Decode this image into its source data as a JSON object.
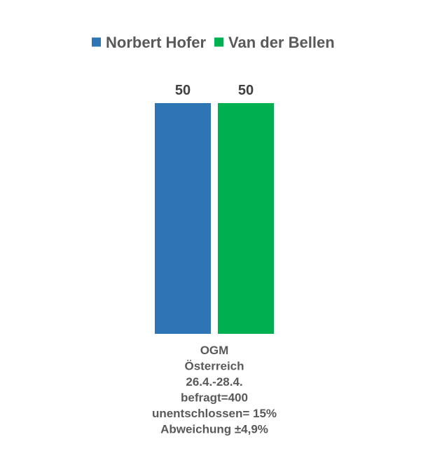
{
  "chart_data": {
    "type": "bar",
    "categories": [
      "OGM\nÖsterreich\n26.4.-28.4.\nbefragt=400\nunentschlossen= 15%\nAbweichung ±4,9%"
    ],
    "category_lines": [
      "OGM",
      "Österreich",
      "26.4.-28.4.",
      "befragt=400",
      "unentschlossen= 15%",
      "Abweichung ±4,9%"
    ],
    "series": [
      {
        "name": "Norbert Hofer",
        "values": [
          50
        ],
        "color": "#2E75B6"
      },
      {
        "name": "Van der Bellen",
        "values": [
          50
        ],
        "color": "#00B050"
      }
    ],
    "ylim": [
      0,
      50
    ],
    "grid": false,
    "legend_position": "top",
    "data_labels": true
  }
}
